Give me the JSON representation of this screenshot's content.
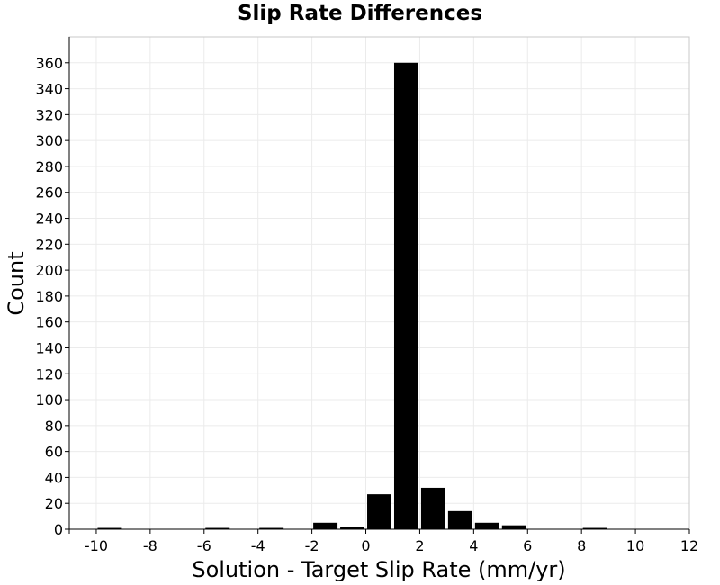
{
  "chart_data": {
    "type": "bar",
    "title": "Slip Rate Differences",
    "xlabel": "Solution - Target Slip Rate (mm/yr)",
    "ylabel": "Count",
    "xlim": [
      -11,
      12
    ],
    "ylim": [
      0,
      380
    ],
    "xticks": [
      -10,
      -8,
      -6,
      -4,
      -2,
      0,
      2,
      4,
      6,
      8,
      10,
      12
    ],
    "yticks": [
      0,
      20,
      40,
      60,
      80,
      100,
      120,
      140,
      160,
      180,
      200,
      220,
      240,
      260,
      280,
      300,
      320,
      340,
      360
    ],
    "bin_width": 1,
    "bins": [
      {
        "x0": -10,
        "x1": -9,
        "count": 1
      },
      {
        "x0": -6,
        "x1": -5,
        "count": 1
      },
      {
        "x0": -4,
        "x1": -3,
        "count": 1
      },
      {
        "x0": -2,
        "x1": -1,
        "count": 5
      },
      {
        "x0": -1,
        "x1": 0,
        "count": 2
      },
      {
        "x0": 0,
        "x1": 1,
        "count": 27
      },
      {
        "x0": 1,
        "x1": 2,
        "count": 360
      },
      {
        "x0": 2,
        "x1": 3,
        "count": 32
      },
      {
        "x0": 3,
        "x1": 4,
        "count": 14
      },
      {
        "x0": 4,
        "x1": 5,
        "count": 5
      },
      {
        "x0": 5,
        "x1": 6,
        "count": 3
      },
      {
        "x0": 8,
        "x1": 9,
        "count": 1
      }
    ],
    "bar_color": "#000000",
    "grid": true,
    "grid_color": "#ebebeb",
    "frame_color": "#c8c8c8",
    "legend": "none"
  }
}
